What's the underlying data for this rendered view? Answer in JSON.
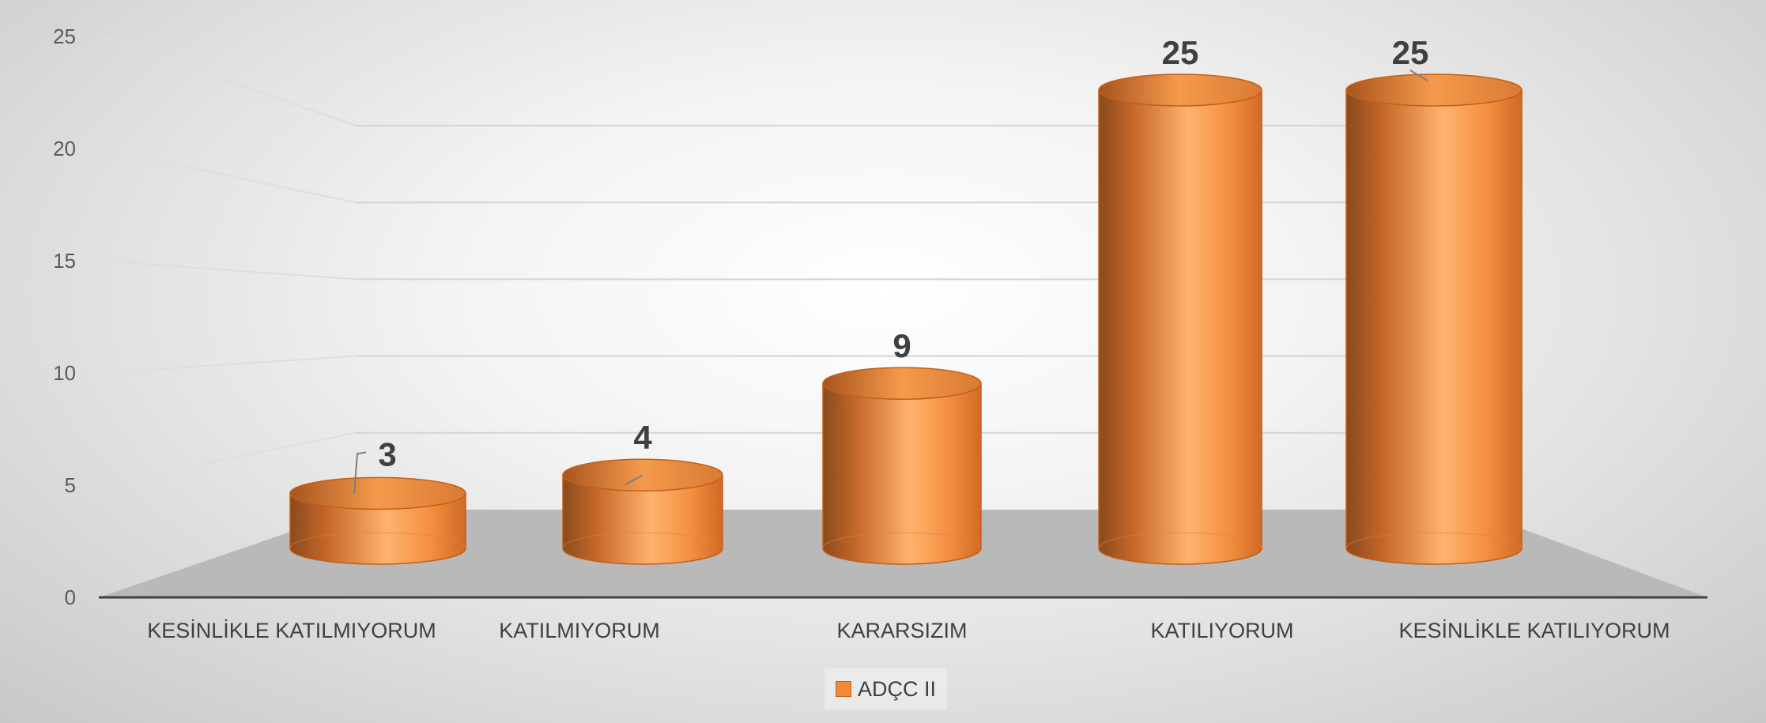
{
  "chart_data": {
    "type": "bar",
    "style": "3d-cylinder",
    "categories": [
      "KESİNLİKLE KATILMIYORUM",
      "KATILMIYORUM",
      "KARARSIZIM",
      "KATILIYORUM",
      "KESİNLİKLE KATILIYORUM"
    ],
    "series": [
      {
        "name": "ADÇC II",
        "values": [
          3,
          4,
          9,
          25,
          25
        ],
        "color": "#f08a3a"
      }
    ],
    "data_labels": [
      "3",
      "4",
      "9",
      "25",
      "25"
    ],
    "yticks": [
      "0",
      "5",
      "10",
      "15",
      "20",
      "25"
    ],
    "ylim": [
      0,
      25
    ],
    "grid": true,
    "legend": "bottom",
    "title": "",
    "xlabel": "",
    "ylabel": ""
  }
}
